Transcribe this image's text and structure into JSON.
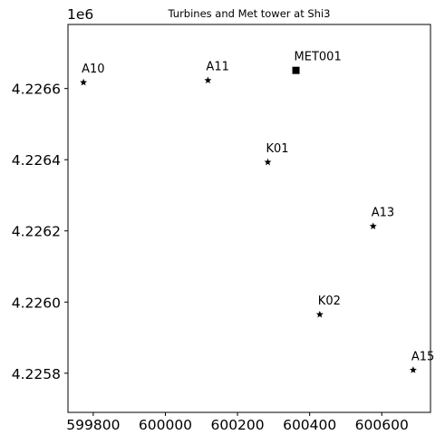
{
  "chart_data": {
    "type": "scatter",
    "title": "Turbines and Met tower at Shi3",
    "xlabel": "",
    "ylabel": "",
    "y_offset_label": "1e6",
    "xlim": [
      599730,
      600735
    ],
    "ylim": [
      4225690,
      4226780
    ],
    "x_ticks": [
      599800,
      600000,
      600200,
      600400,
      600600
    ],
    "x_tick_labels": [
      "599800",
      "600000",
      "600200",
      "600400",
      "600600"
    ],
    "y_ticks": [
      4225800,
      4226000,
      4226200,
      4226400,
      4226600
    ],
    "y_tick_labels": [
      "4.2258",
      "4.2260",
      "4.2262",
      "4.2264",
      "4.2266"
    ],
    "grid": false,
    "points": [
      {
        "label": "A10",
        "x": 599773,
        "y": 4226617,
        "marker": "star"
      },
      {
        "label": "A11",
        "x": 600118,
        "y": 4226623,
        "marker": "star"
      },
      {
        "label": "MET001",
        "x": 600362,
        "y": 4226651,
        "marker": "square"
      },
      {
        "label": "K01",
        "x": 600284,
        "y": 4226393,
        "marker": "star"
      },
      {
        "label": "A13",
        "x": 600576,
        "y": 4226213,
        "marker": "star"
      },
      {
        "label": "K02",
        "x": 600428,
        "y": 4225965,
        "marker": "star"
      },
      {
        "label": "A15",
        "x": 600687,
        "y": 4225809,
        "marker": "star"
      }
    ],
    "colors": {
      "marker": "#000000",
      "axes": "#000000",
      "background": "#ffffff"
    }
  }
}
